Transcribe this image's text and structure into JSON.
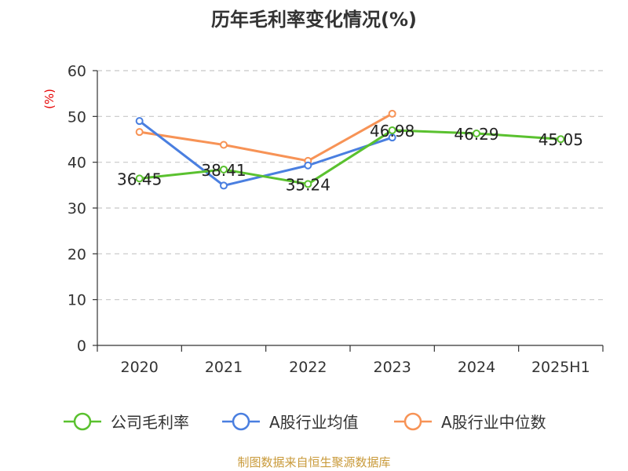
{
  "chart_data": {
    "type": "line",
    "title": "历年毛利率变化情况(%)",
    "ylabel": "(%)",
    "xlabel": "",
    "categories": [
      "2020",
      "2021",
      "2022",
      "2023",
      "2024",
      "2025H1"
    ],
    "ylim": [
      0,
      60
    ],
    "yticks": [
      0,
      10,
      20,
      30,
      40,
      50,
      60
    ],
    "grid": true,
    "legend_position": "bottom",
    "series": [
      {
        "name": "公司毛利率",
        "color": "#5ac12f",
        "values": [
          36.45,
          38.41,
          35.24,
          46.98,
          46.29,
          45.05
        ],
        "labels": [
          "36.45",
          "38.41",
          "35.24",
          "46.98",
          "46.29",
          "45.05"
        ]
      },
      {
        "name": "A股行业均值",
        "color": "#4a7fe0",
        "values": [
          49.0,
          34.9,
          39.3,
          45.4,
          null,
          null
        ]
      },
      {
        "name": "A股行业中位数",
        "color": "#f79356",
        "values": [
          46.6,
          43.8,
          40.3,
          50.6,
          null,
          null
        ]
      }
    ]
  },
  "source": "制图数据来自恒生聚源数据库"
}
